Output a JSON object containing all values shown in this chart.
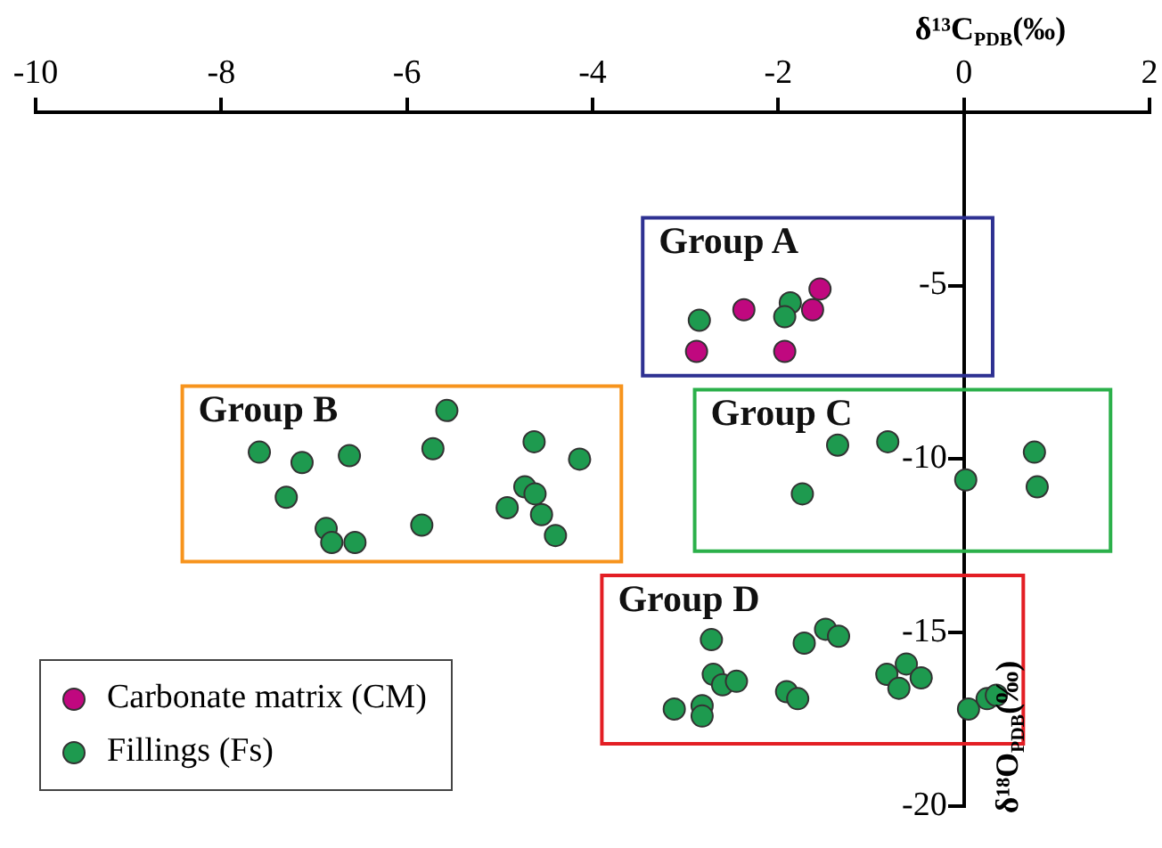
{
  "chart_data": {
    "type": "scatter",
    "xlabel": "δ¹³C$_{PDB}$(‰)",
    "ylabel": "δ¹⁸O$_{PDB}$(‰)",
    "xlim": [
      -10,
      2
    ],
    "xticks": [
      -10,
      -8,
      -6,
      -4,
      -2,
      0,
      2
    ],
    "ylim": [
      -20,
      0
    ],
    "yticks": [
      -20,
      -15,
      -10,
      -5
    ],
    "grid": false,
    "legend": "bottom left",
    "marker": "circle",
    "annotations": [
      "Group A",
      "Group B",
      "Group C",
      "Group D"
    ],
    "series": [
      {
        "name": "Carbonate matrix (CM)",
        "color": "#c0087f",
        "x": [
          -1.55,
          -2.37,
          -1.63,
          -2.88,
          -1.93
        ],
        "values": [
          -5.1,
          -5.7,
          -5.7,
          -6.9,
          -6.9
        ]
      },
      {
        "name": "Fillings (Fs)",
        "color": "#1e9a4f",
        "x": [
          -2.85,
          -1.87,
          -1.93,
          -1.36,
          -0.82,
          -1.74,
          0.02,
          0.76,
          0.79,
          -5.57,
          -7.59,
          -7.13,
          -6.62,
          -5.72,
          -4.63,
          -4.14,
          -7.3,
          -4.73,
          -4.62,
          -4.92,
          -4.55,
          -4.4,
          -5.84,
          -6.87,
          -6.81,
          -6.56,
          -2.72,
          -1.72,
          -1.49,
          -1.35,
          -2.7,
          -2.6,
          -2.45,
          -3.12,
          -2.82,
          -2.82,
          -1.91,
          -1.79,
          -0.62,
          -0.83,
          -0.7,
          -0.46,
          0.05,
          0.25,
          0.35
        ],
        "values": [
          -6.0,
          -5.5,
          -5.9,
          -9.6,
          -9.5,
          -11.0,
          -10.6,
          -9.8,
          -10.8,
          -8.6,
          -9.8,
          -10.1,
          -9.9,
          -9.7,
          -9.5,
          -10.0,
          -11.1,
          -10.8,
          -11.0,
          -11.4,
          -11.6,
          -12.2,
          -11.9,
          -12.0,
          -12.4,
          -12.4,
          -15.2,
          -15.3,
          -14.9,
          -15.1,
          -16.2,
          -16.5,
          -16.4,
          -17.2,
          -17.1,
          -17.4,
          -16.7,
          -16.9,
          -15.9,
          -16.2,
          -16.6,
          -16.3,
          -17.2,
          -16.9,
          -16.8
        ]
      }
    ]
  }
}
